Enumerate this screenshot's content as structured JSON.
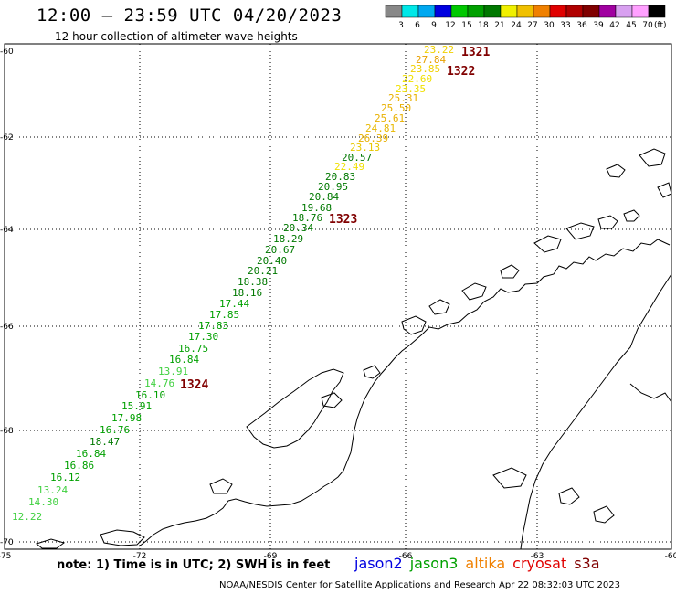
{
  "header": {
    "title": "12:00 – 23:59 UTC 04/20/2023",
    "subtitle": "12 hour collection of altimeter wave heights"
  },
  "legend": {
    "unit": "(ft)",
    "bins": [
      {
        "label": "3",
        "color": "#888888"
      },
      {
        "label": "6",
        "color": "#00e8e8"
      },
      {
        "label": "9",
        "color": "#00a8f0"
      },
      {
        "label": "12",
        "color": "#0000e0"
      },
      {
        "label": "15",
        "color": "#00c800"
      },
      {
        "label": "18",
        "color": "#00a000"
      },
      {
        "label": "21",
        "color": "#007800"
      },
      {
        "label": "24",
        "color": "#f0f000"
      },
      {
        "label": "27",
        "color": "#f0c000"
      },
      {
        "label": "30",
        "color": "#f08000"
      },
      {
        "label": "33",
        "color": "#e00000"
      },
      {
        "label": "36",
        "color": "#b00000"
      },
      {
        "label": "39",
        "color": "#800000"
      },
      {
        "label": "42",
        "color": "#a000a0"
      },
      {
        "label": "45",
        "color": "#d8a0f0"
      },
      {
        "label": "70",
        "color": "#ffa0ff"
      },
      {
        "label": "",
        "color": "#000000"
      }
    ]
  },
  "axes": {
    "lon_labels": [
      "-75",
      "-72",
      "-69",
      "-66",
      "-63",
      "-60"
    ],
    "lat_labels": [
      "-60",
      "-62",
      "-64",
      "-66",
      "-68",
      "-70"
    ]
  },
  "track_times": [
    {
      "label": "1321",
      "color": "#800000"
    },
    {
      "label": "1322",
      "color": "#800000"
    },
    {
      "label": "1323",
      "color": "#800000"
    },
    {
      "label": "1324",
      "color": "#800000"
    }
  ],
  "track_points": [
    {
      "value": "23.22",
      "color": "#f0d000"
    },
    {
      "value": "27.84",
      "color": "#e8a000"
    },
    {
      "value": "23.85",
      "color": "#f0d000"
    },
    {
      "value": "22.60",
      "color": "#f0e000"
    },
    {
      "value": "23.35",
      "color": "#f0e000"
    },
    {
      "value": "25.31",
      "color": "#e8b000"
    },
    {
      "value": "25.50",
      "color": "#e8b000"
    },
    {
      "value": "25.61",
      "color": "#e8b000"
    },
    {
      "value": "24.81",
      "color": "#e8b800"
    },
    {
      "value": "26.39",
      "color": "#e8b000"
    },
    {
      "value": "23.13",
      "color": "#e8c800"
    },
    {
      "value": "20.57",
      "color": "#007800"
    },
    {
      "value": "22.49",
      "color": "#f0e000"
    },
    {
      "value": "20.83",
      "color": "#007800"
    },
    {
      "value": "20.95",
      "color": "#007800"
    },
    {
      "value": "20.84",
      "color": "#007800"
    },
    {
      "value": "19.68",
      "color": "#007800"
    },
    {
      "value": "18.76",
      "color": "#007800"
    },
    {
      "value": "20.34",
      "color": "#007800"
    },
    {
      "value": "18.29",
      "color": "#007800"
    },
    {
      "value": "20.67",
      "color": "#007800"
    },
    {
      "value": "20.40",
      "color": "#007800"
    },
    {
      "value": "20.21",
      "color": "#007800"
    },
    {
      "value": "18.38",
      "color": "#007800"
    },
    {
      "value": "18.16",
      "color": "#007800"
    },
    {
      "value": "17.44",
      "color": "#00a000"
    },
    {
      "value": "17.85",
      "color": "#00a000"
    },
    {
      "value": "17.83",
      "color": "#00a000"
    },
    {
      "value": "17.30",
      "color": "#00a000"
    },
    {
      "value": "16.75",
      "color": "#00a000"
    },
    {
      "value": "16.84",
      "color": "#00a000"
    },
    {
      "value": "13.91",
      "color": "#40d040"
    },
    {
      "value": "14.76",
      "color": "#40d040"
    },
    {
      "value": "16.10",
      "color": "#00a000"
    },
    {
      "value": "15.91",
      "color": "#00a000"
    },
    {
      "value": "17.98",
      "color": "#00a000"
    },
    {
      "value": "16.76",
      "color": "#00a000"
    },
    {
      "value": "18.47",
      "color": "#007800"
    },
    {
      "value": "16.84",
      "color": "#00a000"
    },
    {
      "value": "16.86",
      "color": "#00a000"
    },
    {
      "value": "16.12",
      "color": "#00a000"
    },
    {
      "value": "13.24",
      "color": "#40d040"
    },
    {
      "value": "14.30",
      "color": "#40d040"
    },
    {
      "value": "12.22",
      "color": "#40d040"
    }
  ],
  "footer": {
    "note": "note:  1) Time is in UTC; 2) SWH is in feet",
    "credit": "NOAA/NESDIS Center for Satellite Applications and Research     Apr 22 08:32:03 UTC 2023",
    "satellites": [
      {
        "name": "jason2",
        "color": "#0000e0"
      },
      {
        "name": "jason3",
        "color": "#00a000"
      },
      {
        "name": "altika",
        "color": "#f08000"
      },
      {
        "name": "cryosat",
        "color": "#e00000"
      },
      {
        "name": "s3a",
        "color": "#800000"
      }
    ]
  }
}
